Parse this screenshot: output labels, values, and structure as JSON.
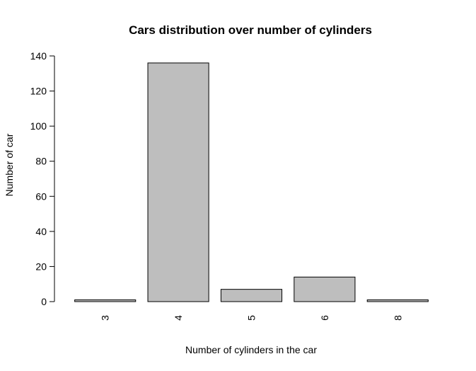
{
  "chart_data": {
    "type": "bar",
    "title": "Cars distribution over number of cylinders",
    "xlabel": "Number of cylinders in the car",
    "ylabel": "Number of car",
    "categories": [
      "3",
      "4",
      "5",
      "6",
      "8"
    ],
    "values": [
      1,
      136,
      7,
      14,
      1
    ],
    "ylim": [
      0,
      140
    ],
    "yticks": [
      0,
      20,
      40,
      60,
      80,
      100,
      120,
      140
    ],
    "ytick_labels": [
      "0",
      "20",
      "40",
      "60",
      "80",
      "100",
      "120",
      "140"
    ],
    "bar_color": "#bebebe",
    "bar_edge_color": "#000000",
    "grid": false,
    "legend": "none",
    "x_tick_labels_rotated": true
  }
}
